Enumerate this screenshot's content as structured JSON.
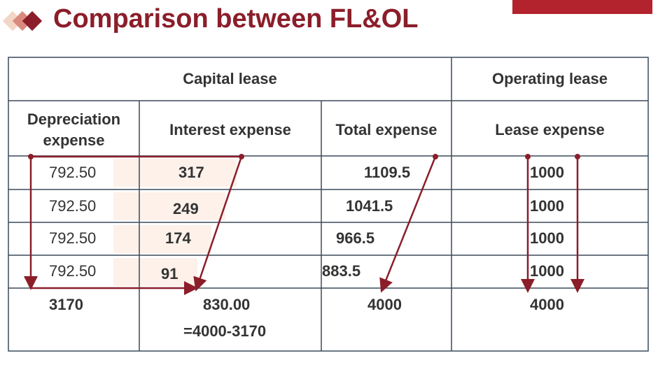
{
  "header": {
    "title": "Comparison between FL&OL"
  },
  "table": {
    "groups": [
      "Capital lease",
      "Operating lease"
    ],
    "columns": [
      "Depreciation expense",
      "Interest expense",
      "Total expense",
      "Lease expense"
    ],
    "rows": [
      [
        "792.50",
        "317",
        "1109.5",
        "1000"
      ],
      [
        "792.50",
        "249",
        "1041.5",
        "1000"
      ],
      [
        "792.50",
        "174",
        "966.5",
        "1000"
      ],
      [
        "792.50",
        "91",
        "883.5",
        "1000"
      ]
    ],
    "totals": [
      "3170",
      "830.00",
      "4000",
      "4000"
    ],
    "note": "=4000-3170"
  }
}
